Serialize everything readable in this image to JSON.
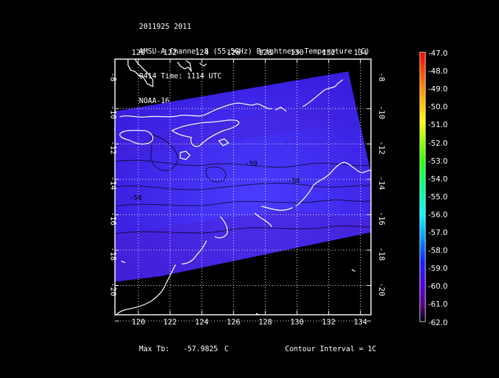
{
  "header": {
    "line1": "2011925 2011",
    "line2": "AMSU-A Channel 8 (55.5GHz) Brightness Temperature (C)",
    "line3": "0414 Time: 1114 UTC",
    "line4": "NOAA-16"
  },
  "map": {
    "lon_ticks": [
      "120",
      "122",
      "124",
      "126",
      "128",
      "130",
      "132",
      "134"
    ],
    "lat_ticks": [
      "-8",
      "-10",
      "-12",
      "-14",
      "-16",
      "-18",
      "-20"
    ],
    "contour_labels": [
      "-59",
      "-58",
      "-58"
    ],
    "colors": {
      "background": "#000000",
      "frame": "#ffffff",
      "swath": "#3a22e6",
      "coast": "#ffffff",
      "grid": "#ffffff"
    }
  },
  "colorbar": {
    "labels": [
      "-47.0",
      "-48.0",
      "-49.0",
      "-50.0",
      "-51.0",
      "-52.0",
      "-53.0",
      "-54.0",
      "-55.0",
      "-56.0",
      "-57.0",
      "-58.0",
      "-59.0",
      "-60.0",
      "-61.0",
      "-62.0"
    ],
    "colors": [
      "#ff0000",
      "#ff4400",
      "#ff8800",
      "#ffcc00",
      "#ffff00",
      "#aaff00",
      "#44ff00",
      "#00ff44",
      "#00ffaa",
      "#00ffff",
      "#00aaff",
      "#0055ff",
      "#2200ff",
      "#6600cc",
      "#440066",
      "#000000"
    ]
  },
  "footer": {
    "max_tb_label": "Max Tb:",
    "max_tb_value": "-57.9825",
    "max_tb_unit": "C",
    "contour_interval": "Contour Interval = 1C"
  }
}
